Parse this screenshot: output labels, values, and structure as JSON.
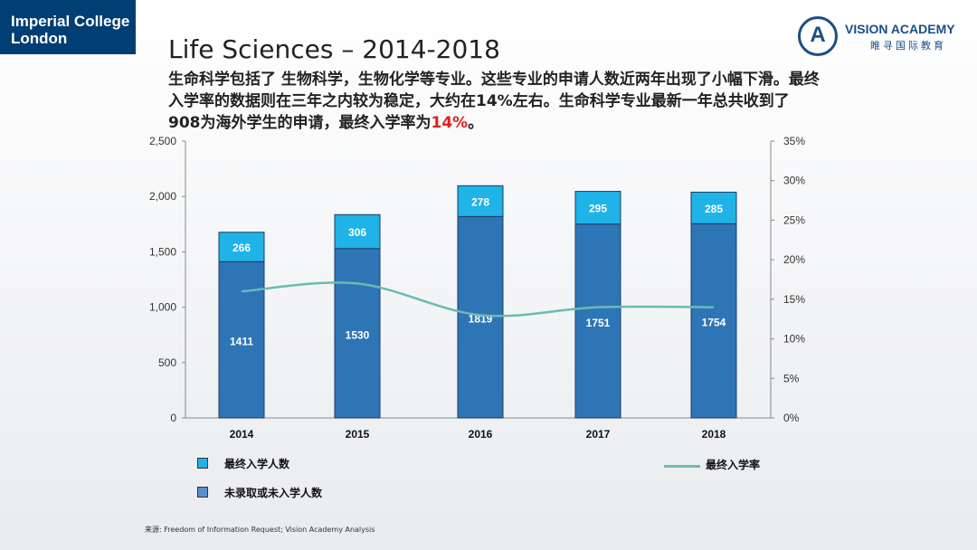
{
  "header": {
    "logo_line1": "Imperial College",
    "logo_line2": "London",
    "brand_mark": "A",
    "brand_name": "VISION ACADEMY",
    "brand_cn": "睢寻国际教育"
  },
  "title": "Life Sciences – 2014-2018",
  "subtitle_main": "生命科学包括了 生物科学，生物化学等专业。这些专业的申请人数近两年出现了小幅下滑。最终入学率的数据则在三年之内较为稳定，大约在14%左右。生命科学专业最新一年总共收到了908为海外学生的申请，最终入学率为",
  "subtitle_highlight": "14%",
  "subtitle_end": "。",
  "source": "来源:      Freedom of Information Request; Vision Academy Analysis",
  "colors": {
    "bar_bottom": "#2e75b6",
    "bar_top": "#1fb3e8",
    "line": "#6bbab3",
    "highlight": "#e02020"
  },
  "chart_data": {
    "type": "bar",
    "stacked": true,
    "categories": [
      "2014",
      "2015",
      "2016",
      "2017",
      "2018"
    ],
    "series": [
      {
        "name": "未录取或未入学人数",
        "values": [
          1411,
          1530,
          1819,
          1751,
          1754
        ]
      },
      {
        "name": "最终入学人数",
        "values": [
          266,
          306,
          278,
          295,
          285
        ]
      }
    ],
    "line_series": {
      "name": "最终入学率",
      "values": [
        16,
        17,
        13,
        14,
        14
      ],
      "axis": "right"
    },
    "ylim": [
      0,
      2500
    ],
    "yticks": [
      "0",
      "500",
      "1,000",
      "1,500",
      "2,000",
      "2,500"
    ],
    "y2lim": [
      0,
      35
    ],
    "y2ticks": [
      "0%",
      "5%",
      "10%",
      "15%",
      "20%",
      "25%",
      "30%",
      "35%"
    ],
    "legend_placement": "bottom"
  }
}
